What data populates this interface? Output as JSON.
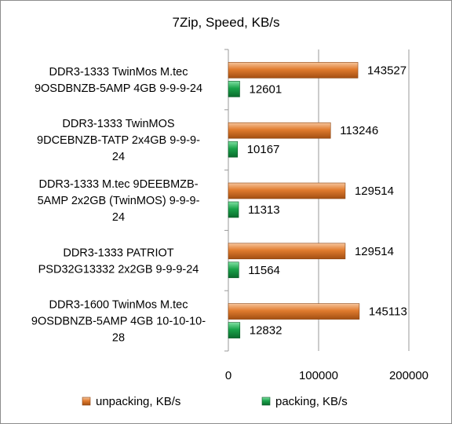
{
  "colors": {
    "unpacking": "#e07b2e",
    "packing": "#1aa34a",
    "grid": "#9a9a9a",
    "frame": "#8c8c8c"
  },
  "chart_data": {
    "type": "bar",
    "orientation": "horizontal",
    "title": "7Zip, Speed, KB/s",
    "categories": [
      [
        "DDR3-1333 TwinMos M.tec",
        "9OSDBNZB-5AMP 4GB 9-9-9-24"
      ],
      [
        "DDR3-1333 TwinMOS",
        "9DCEBNZB-TATP  2x4GB 9-9-9-",
        "24"
      ],
      [
        "DDR3-1333 M.tec 9DEEBMZB-",
        "5AMP 2x2GB (TwinMOS) 9-9-9-",
        "24"
      ],
      [
        "DDR3-1333 PATRIOT",
        "PSD32G13332 2x2GB 9-9-9-24"
      ],
      [
        "DDR3-1600 TwinMos M.tec",
        "9OSDBNZB-5AMP 4GB 10-10-10-",
        "28"
      ]
    ],
    "series": [
      {
        "name": "unpacking, KB/s",
        "values": [
          143527,
          113246,
          129514,
          129514,
          145113
        ]
      },
      {
        "name": "packing, KB/s",
        "values": [
          12601,
          10167,
          11313,
          11564,
          12832
        ]
      }
    ],
    "xlim": [
      0,
      200000
    ],
    "xticks": [
      0,
      100000,
      200000
    ],
    "xtick_labels": [
      "0",
      "100000",
      "200000"
    ],
    "grid": "vertical major gridlines",
    "legend_position": "bottom"
  }
}
